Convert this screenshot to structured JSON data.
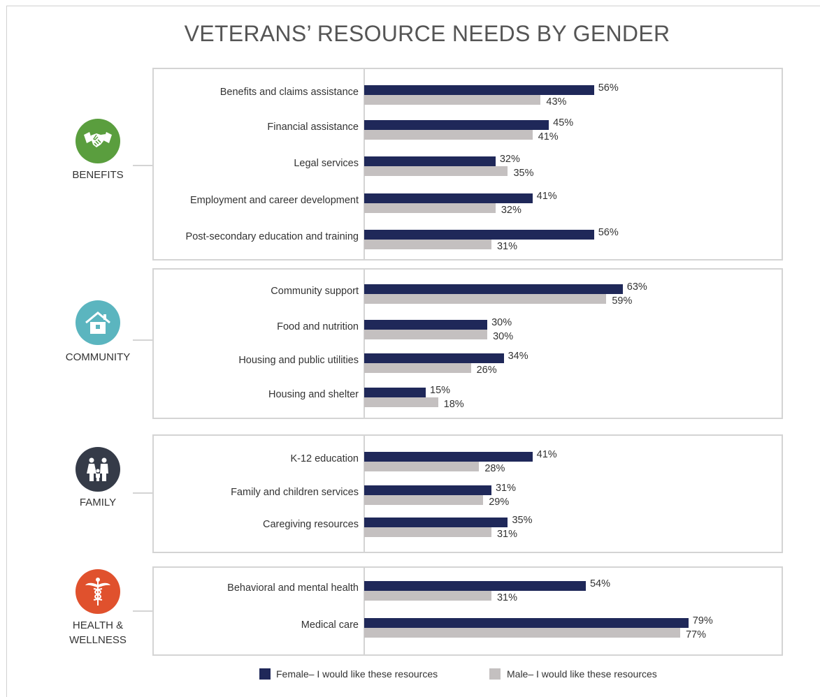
{
  "chart_data": {
    "type": "bar",
    "title": "VETERANS’ RESOURCE NEEDS BY GENDER",
    "xlim": [
      0,
      100
    ],
    "legend_position": "bottom",
    "legend": [
      {
        "name": "Female– I would like these resources",
        "color": "#1f2859"
      },
      {
        "name": "Male– I would like these resources",
        "color": "#c4c0c0"
      }
    ],
    "groups": [
      {
        "name": "BENEFITS",
        "icon": "handshake-icon",
        "icon_color": "#5a9e3e",
        "items": [
          {
            "label": "Benefits and claims assistance",
            "female": 56,
            "male": 43,
            "female_label": "56%",
            "male_label": "43%"
          },
          {
            "label": "Financial assistance",
            "female": 45,
            "male": 41,
            "female_label": "45%",
            "male_label": "41%"
          },
          {
            "label": "Legal services",
            "female": 32,
            "male": 35,
            "female_label": "32%",
            "male_label": "35%"
          },
          {
            "label": "Employment and career development",
            "female": 41,
            "male": 32,
            "female_label": "41%",
            "male_label": "32%"
          },
          {
            "label": "Post-secondary education and training",
            "female": 56,
            "male": 31,
            "female_label": "56%",
            "male_label": "31%"
          }
        ]
      },
      {
        "name": "COMMUNITY",
        "icon": "house-icon",
        "icon_color": "#5bb5bf",
        "items": [
          {
            "label": "Community support",
            "female": 63,
            "male": 59,
            "female_label": "63%",
            "male_label": "59%"
          },
          {
            "label": "Food and nutrition",
            "female": 30,
            "male": 30,
            "female_label": "30%",
            "male_label": "30%"
          },
          {
            "label": "Housing and public utilities",
            "female": 34,
            "male": 26,
            "female_label": "34%",
            "male_label": "26%"
          },
          {
            "label": "Housing and shelter",
            "female": 15,
            "male": 18,
            "female_label": "15%",
            "male_label": "18%"
          }
        ]
      },
      {
        "name": "FAMILY",
        "icon": "family-icon",
        "icon_color": "#353b48",
        "items": [
          {
            "label": "K-12 education",
            "female": 41,
            "male": 28,
            "female_label": "41%",
            "male_label": "28%"
          },
          {
            "label": "Family and children services",
            "female": 31,
            "male": 29,
            "female_label": "31%",
            "male_label": "29%"
          },
          {
            "label": "Caregiving resources",
            "female": 35,
            "male": 31,
            "female_label": "35%",
            "male_label": "31%"
          }
        ]
      },
      {
        "name": "HEALTH & WELLNESS",
        "icon": "caduceus-icon",
        "icon_color": "#e0512d",
        "items": [
          {
            "label": "Behavioral and mental health",
            "female": 54,
            "male": 31,
            "female_label": "54%",
            "male_label": "31%"
          },
          {
            "label": "Medical care",
            "female": 79,
            "male": 77,
            "female_label": "79%",
            "male_label": "77%"
          }
        ]
      }
    ]
  }
}
